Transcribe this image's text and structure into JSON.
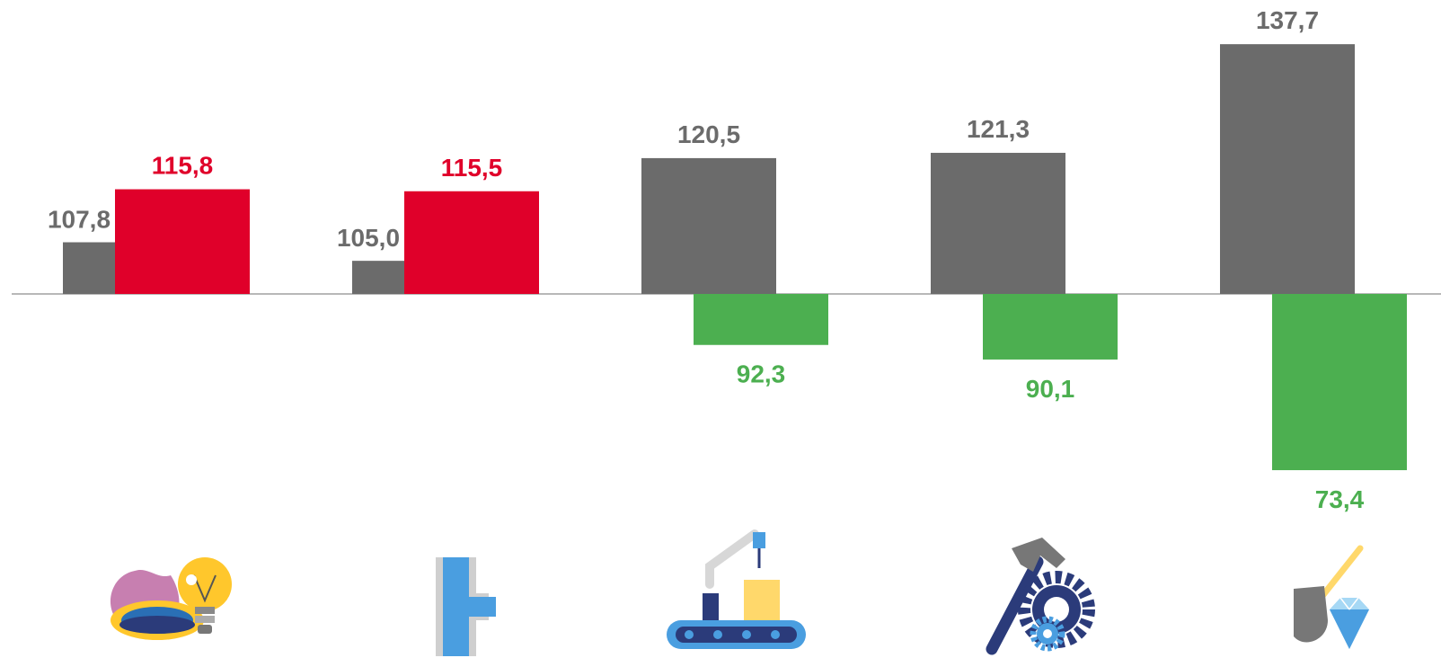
{
  "chart_data": {
    "type": "bar",
    "title": "",
    "xlabel": "",
    "ylabel": "",
    "baseline": 100,
    "categories": [
      "gas-electricity",
      "water-pipes",
      "manufacturing",
      "tools-machinery",
      "mining"
    ],
    "category_icons": [
      "gas-flame-and-lightbulb-icon",
      "water-pipe-icon",
      "robotic-assembly-line-icon",
      "hammer-and-gears-icon",
      "shovel-and-diamond-icon"
    ],
    "series": [
      {
        "values": [
          107.8,
          105.0,
          120.5,
          121.3,
          137.7
        ],
        "labels": [
          "107,8",
          "105,0",
          "120,5",
          "121,3",
          "137,7"
        ]
      },
      {
        "values": [
          115.8,
          115.5,
          92.3,
          90.1,
          73.4
        ],
        "labels": [
          "115,8",
          "115,5",
          "92,3",
          "90,1",
          "73,4"
        ]
      }
    ],
    "colors": {
      "first_series": "#6b6b6b",
      "up": "#e0002a",
      "down": "#4caf50"
    },
    "grid": false,
    "legend": "none"
  }
}
